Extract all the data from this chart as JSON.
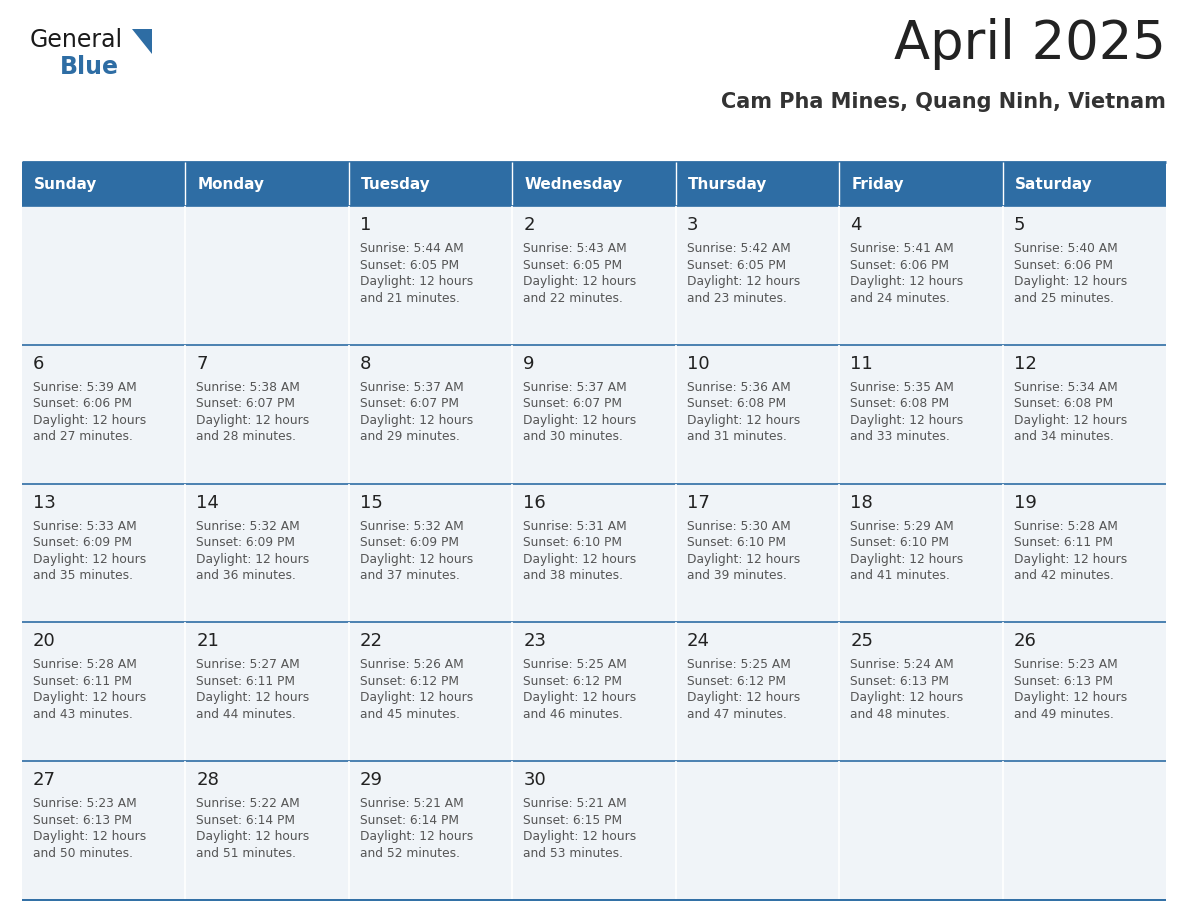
{
  "title": "April 2025",
  "subtitle": "Cam Pha Mines, Quang Ninh, Vietnam",
  "days_of_week": [
    "Sunday",
    "Monday",
    "Tuesday",
    "Wednesday",
    "Thursday",
    "Friday",
    "Saturday"
  ],
  "header_bg": "#2E6DA4",
  "header_text": "#FFFFFF",
  "cell_bg": "#F0F4F8",
  "line_color": "#2E6DA4",
  "title_color": "#222222",
  "subtitle_color": "#333333",
  "day_number_color": "#222222",
  "cell_text_color": "#555555",
  "logo_text_color": "#1a1a1a",
  "logo_blue_color": "#2E6DA4",
  "calendar": [
    [
      {
        "day": null,
        "sunrise": null,
        "sunset": null,
        "daylight_mins": null
      },
      {
        "day": null,
        "sunrise": null,
        "sunset": null,
        "daylight_mins": null
      },
      {
        "day": 1,
        "sunrise": "5:44 AM",
        "sunset": "6:05 PM",
        "daylight_mins": 21
      },
      {
        "day": 2,
        "sunrise": "5:43 AM",
        "sunset": "6:05 PM",
        "daylight_mins": 22
      },
      {
        "day": 3,
        "sunrise": "5:42 AM",
        "sunset": "6:05 PM",
        "daylight_mins": 23
      },
      {
        "day": 4,
        "sunrise": "5:41 AM",
        "sunset": "6:06 PM",
        "daylight_mins": 24
      },
      {
        "day": 5,
        "sunrise": "5:40 AM",
        "sunset": "6:06 PM",
        "daylight_mins": 25
      }
    ],
    [
      {
        "day": 6,
        "sunrise": "5:39 AM",
        "sunset": "6:06 PM",
        "daylight_mins": 27
      },
      {
        "day": 7,
        "sunrise": "5:38 AM",
        "sunset": "6:07 PM",
        "daylight_mins": 28
      },
      {
        "day": 8,
        "sunrise": "5:37 AM",
        "sunset": "6:07 PM",
        "daylight_mins": 29
      },
      {
        "day": 9,
        "sunrise": "5:37 AM",
        "sunset": "6:07 PM",
        "daylight_mins": 30
      },
      {
        "day": 10,
        "sunrise": "5:36 AM",
        "sunset": "6:08 PM",
        "daylight_mins": 31
      },
      {
        "day": 11,
        "sunrise": "5:35 AM",
        "sunset": "6:08 PM",
        "daylight_mins": 33
      },
      {
        "day": 12,
        "sunrise": "5:34 AM",
        "sunset": "6:08 PM",
        "daylight_mins": 34
      }
    ],
    [
      {
        "day": 13,
        "sunrise": "5:33 AM",
        "sunset": "6:09 PM",
        "daylight_mins": 35
      },
      {
        "day": 14,
        "sunrise": "5:32 AM",
        "sunset": "6:09 PM",
        "daylight_mins": 36
      },
      {
        "day": 15,
        "sunrise": "5:32 AM",
        "sunset": "6:09 PM",
        "daylight_mins": 37
      },
      {
        "day": 16,
        "sunrise": "5:31 AM",
        "sunset": "6:10 PM",
        "daylight_mins": 38
      },
      {
        "day": 17,
        "sunrise": "5:30 AM",
        "sunset": "6:10 PM",
        "daylight_mins": 39
      },
      {
        "day": 18,
        "sunrise": "5:29 AM",
        "sunset": "6:10 PM",
        "daylight_mins": 41
      },
      {
        "day": 19,
        "sunrise": "5:28 AM",
        "sunset": "6:11 PM",
        "daylight_mins": 42
      }
    ],
    [
      {
        "day": 20,
        "sunrise": "5:28 AM",
        "sunset": "6:11 PM",
        "daylight_mins": 43
      },
      {
        "day": 21,
        "sunrise": "5:27 AM",
        "sunset": "6:11 PM",
        "daylight_mins": 44
      },
      {
        "day": 22,
        "sunrise": "5:26 AM",
        "sunset": "6:12 PM",
        "daylight_mins": 45
      },
      {
        "day": 23,
        "sunrise": "5:25 AM",
        "sunset": "6:12 PM",
        "daylight_mins": 46
      },
      {
        "day": 24,
        "sunrise": "5:25 AM",
        "sunset": "6:12 PM",
        "daylight_mins": 47
      },
      {
        "day": 25,
        "sunrise": "5:24 AM",
        "sunset": "6:13 PM",
        "daylight_mins": 48
      },
      {
        "day": 26,
        "sunrise": "5:23 AM",
        "sunset": "6:13 PM",
        "daylight_mins": 49
      }
    ],
    [
      {
        "day": 27,
        "sunrise": "5:23 AM",
        "sunset": "6:13 PM",
        "daylight_mins": 50
      },
      {
        "day": 28,
        "sunrise": "5:22 AM",
        "sunset": "6:14 PM",
        "daylight_mins": 51
      },
      {
        "day": 29,
        "sunrise": "5:21 AM",
        "sunset": "6:14 PM",
        "daylight_mins": 52
      },
      {
        "day": 30,
        "sunrise": "5:21 AM",
        "sunset": "6:15 PM",
        "daylight_mins": 53
      },
      {
        "day": null,
        "sunrise": null,
        "sunset": null,
        "daylight_mins": null
      },
      {
        "day": null,
        "sunrise": null,
        "sunset": null,
        "daylight_mins": null
      },
      {
        "day": null,
        "sunrise": null,
        "sunset": null,
        "daylight_mins": null
      }
    ]
  ]
}
